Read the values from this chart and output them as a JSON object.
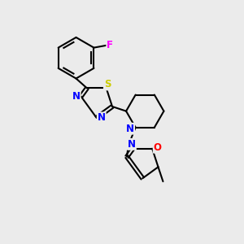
{
  "background_color": "#ebebeb",
  "bond_color": "#000000",
  "atom_colors": {
    "N": "#0000FF",
    "S": "#CCCC00",
    "O": "#FF0000",
    "F": "#FF00FF",
    "C": "#000000"
  },
  "figsize": [
    3.0,
    3.0
  ],
  "dpi": 100
}
